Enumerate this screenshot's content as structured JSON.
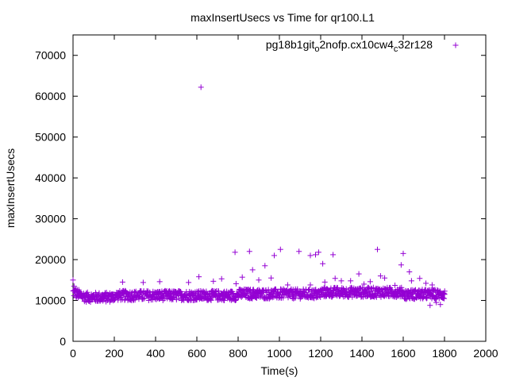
{
  "chart_data": {
    "type": "scatter",
    "title": "maxInsertUsecs vs Time for qr100.L1",
    "xlabel": "Time(s)",
    "ylabel": "maxInsertUsecs",
    "xlim": [
      0,
      2000
    ],
    "ylim": [
      0,
      75000
    ],
    "xticks": [
      "0",
      "200",
      "400",
      "600",
      "800",
      "1000",
      "1200",
      "1400",
      "1600",
      "1800",
      "2000"
    ],
    "yticks": [
      "0",
      "10000",
      "20000",
      "30000",
      "40000",
      "50000",
      "60000",
      "70000"
    ],
    "grid": false,
    "legend_position": "top-right",
    "marker": "+",
    "series": [
      {
        "name_parts": [
          {
            "text": "pg18b1git",
            "sub": false
          },
          {
            "text": "o",
            "sub": true
          },
          {
            "text": "2nofp.cx10cw4",
            "sub": false
          },
          {
            "text": "c",
            "sub": true
          },
          {
            "text": "32r128",
            "sub": false
          }
        ],
        "color": "#9400d3",
        "x_range": [
          0,
          1800
        ],
        "typical_range": [
          10000,
          13000
        ],
        "points": [
          [
            0,
            15000
          ],
          [
            5,
            13500
          ],
          [
            10,
            12500
          ],
          [
            20,
            12000
          ],
          [
            30,
            11000
          ],
          [
            620,
            62200
          ],
          [
            610,
            15800
          ],
          [
            785,
            21800
          ],
          [
            855,
            22000
          ],
          [
            870,
            17500
          ],
          [
            900,
            15000
          ],
          [
            930,
            18500
          ],
          [
            975,
            21000
          ],
          [
            1005,
            22500
          ],
          [
            1095,
            22000
          ],
          [
            1150,
            21000
          ],
          [
            1175,
            21200
          ],
          [
            1190,
            21800
          ],
          [
            1210,
            19000
          ],
          [
            1260,
            21200
          ],
          [
            1475,
            22500
          ],
          [
            1590,
            18700
          ],
          [
            1600,
            21500
          ],
          [
            1630,
            17000
          ],
          [
            960,
            15500
          ],
          [
            1040,
            13800
          ],
          [
            1150,
            13800
          ],
          [
            1220,
            14500
          ],
          [
            1270,
            15400
          ],
          [
            1300,
            14800
          ],
          [
            1345,
            14800
          ],
          [
            1385,
            16500
          ],
          [
            1410,
            14000
          ],
          [
            1440,
            14600
          ],
          [
            1490,
            16000
          ],
          [
            1510,
            15500
          ],
          [
            1560,
            13700
          ],
          [
            1640,
            14800
          ],
          [
            1680,
            15400
          ],
          [
            1710,
            14200
          ],
          [
            1740,
            13800
          ],
          [
            1760,
            9500
          ],
          [
            1780,
            9000
          ],
          [
            1730,
            8800
          ],
          [
            240,
            14500
          ],
          [
            340,
            14400
          ],
          [
            420,
            14600
          ],
          [
            560,
            14400
          ],
          [
            680,
            14700
          ],
          [
            720,
            15300
          ],
          [
            790,
            14100
          ],
          [
            820,
            15700
          ]
        ]
      }
    ]
  }
}
